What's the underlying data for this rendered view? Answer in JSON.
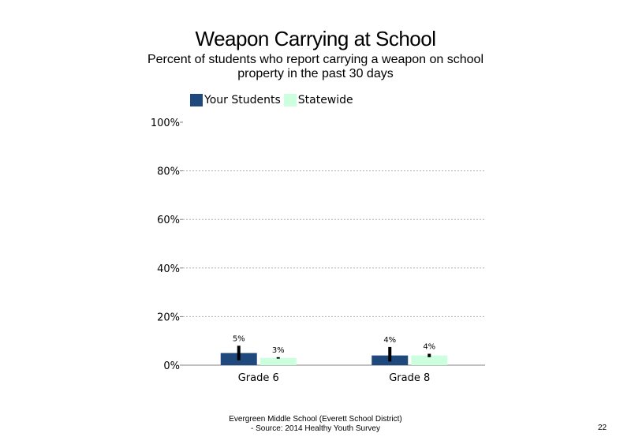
{
  "slide": {
    "title": "Weapon Carrying at School",
    "subtitle": "Percent of students who report carrying a weapon on school property in the past 30 days",
    "footer_line1": "Evergreen Middle School (Everett School District)",
    "footer_line2": "- Source: 2014 Healthy Youth Survey",
    "page_number": "22"
  },
  "chart_data": {
    "type": "bar",
    "categories": [
      "Grade 6",
      "Grade 8"
    ],
    "series": [
      {
        "name": "Your Students",
        "values": [
          5,
          4
        ],
        "labels": [
          "5%",
          "4%"
        ],
        "error_low": [
          2,
          1.5
        ],
        "error_high": [
          8,
          7.5
        ],
        "color": "#1f497d"
      },
      {
        "name": "Statewide",
        "values": [
          3,
          4
        ],
        "labels": [
          "3%",
          "4%"
        ],
        "error_low": [
          2.7,
          3.3
        ],
        "error_high": [
          3.3,
          4.7
        ],
        "color": "#ccffdd"
      }
    ],
    "ylim": [
      0,
      100
    ],
    "yticks": [
      "0%",
      "20%",
      "40%",
      "60%",
      "80%",
      "100%"
    ],
    "ytick_values": [
      0,
      20,
      40,
      60,
      80,
      100
    ],
    "grid": true,
    "legend": "top-left",
    "xlabel": "",
    "ylabel": ""
  }
}
